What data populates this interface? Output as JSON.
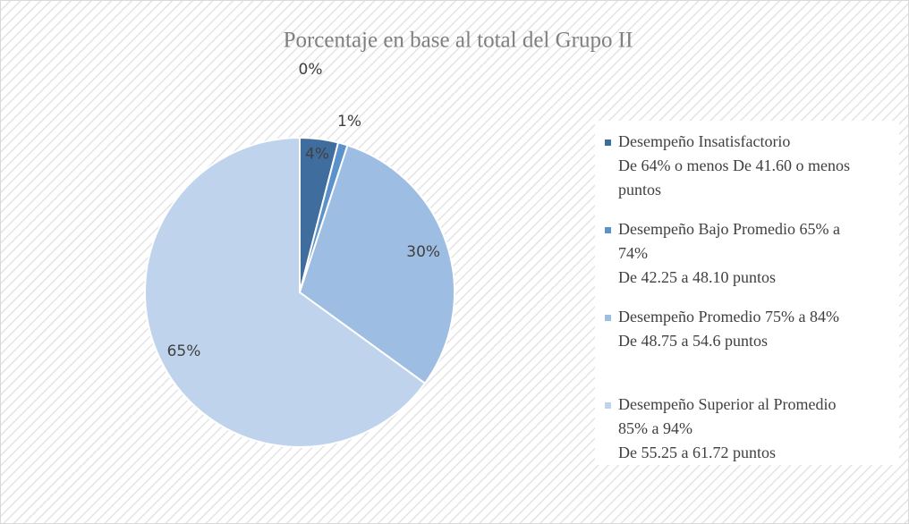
{
  "chart_data": {
    "type": "pie",
    "title": "Porcentaje  en base al total del  Grupo II",
    "categories": [
      null,
      "Desempeño Insatisfactorio\nDe 64% o menos De 41.60 o menos\npuntos",
      "Desempeño Bajo Promedio 65% a\n74%\nDe 42.25 a 48.10 puntos",
      "Desempeño Promedio 75% a 84%\nDe 48.75 a 54.6 puntos",
      "Desempeño Superior al Promedio\n85% a 94%\nDe 55.25 a 61.72 puntos"
    ],
    "values": [
      0,
      4,
      1,
      30,
      65
    ],
    "value_labels": [
      "0%",
      "4%",
      "1%",
      "30%",
      "65%"
    ],
    "colors": [
      "#2f5a88",
      "#3f6d9e",
      "#5b92cc",
      "#9dbde2",
      "#bfd3ec"
    ],
    "legend": "right"
  }
}
